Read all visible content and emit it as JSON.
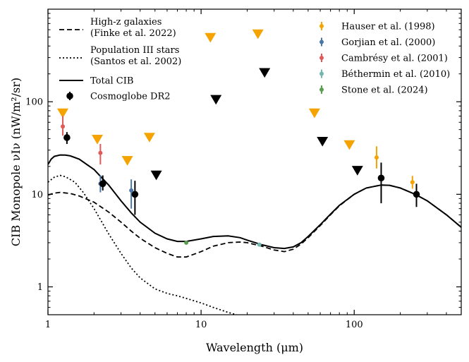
{
  "chart_data": {
    "type": "line",
    "xlabel": "Wavelength (μm)",
    "ylabel": "CIB Monopole νIν (nW/m²/sr)",
    "xscale": "log",
    "yscale": "log",
    "xlim": [
      1,
      500
    ],
    "ylim": [
      0.5,
      1000
    ],
    "xticks": [
      {
        "v": 1,
        "label": "1"
      },
      {
        "v": 10,
        "label": "10"
      },
      {
        "v": 100,
        "label": "100"
      }
    ],
    "yticks": [
      {
        "v": 1,
        "label": "1"
      },
      {
        "v": 10,
        "label": "10"
      },
      {
        "v": 100,
        "label": "100"
      }
    ],
    "colors": {
      "hauser": "#f5a300",
      "gorjian": "#4a76a8",
      "cambresy": "#e05a5a",
      "bethermin": "#72b8ae",
      "stone": "#5a9e50",
      "cosmoglobe": "#000000"
    },
    "lines": [
      {
        "name": "High-z galaxies (Finke et al. 2022)",
        "style": "dashed",
        "x": [
          1,
          1.1,
          1.2,
          1.4,
          1.6,
          2,
          2.5,
          3,
          3.5,
          4,
          5,
          6,
          7,
          8,
          10,
          12,
          15,
          18,
          20,
          25,
          30,
          35,
          40,
          45,
          50,
          60,
          70,
          80,
          100,
          120,
          150,
          170,
          200,
          250,
          300,
          400,
          500
        ],
        "y": [
          9.8,
          10.3,
          10.5,
          10.2,
          9.6,
          8.2,
          6.4,
          5,
          4,
          3.35,
          2.65,
          2.3,
          2.1,
          2.1,
          2.4,
          2.75,
          3,
          3.05,
          3,
          2.75,
          2.5,
          2.4,
          2.55,
          2.9,
          3.4,
          4.6,
          6,
          7.5,
          10,
          11.7,
          12.6,
          12.5,
          11.7,
          10,
          8.5,
          6,
          4.4
        ]
      },
      {
        "name": "Population III stars (Santos et al. 2002)",
        "style": "dotted",
        "x": [
          1,
          1.1,
          1.2,
          1.3,
          1.5,
          1.7,
          2,
          2.5,
          3,
          3.5,
          4,
          5,
          6,
          7,
          8,
          10,
          12,
          15,
          17
        ],
        "y": [
          13.5,
          15.3,
          16,
          15.5,
          13.5,
          10.5,
          7,
          3.7,
          2.3,
          1.6,
          1.25,
          0.95,
          0.85,
          0.8,
          0.75,
          0.67,
          0.6,
          0.53,
          0.5
        ]
      },
      {
        "name": "Total CIB",
        "style": "solid",
        "x": [
          1,
          1.05,
          1.1,
          1.2,
          1.3,
          1.4,
          1.6,
          2,
          2.5,
          3,
          3.5,
          4,
          5,
          6,
          7,
          8,
          10,
          12,
          15,
          18,
          20,
          25,
          30,
          35,
          40,
          45,
          50,
          60,
          70,
          80,
          100,
          120,
          150,
          170,
          200,
          250,
          300,
          400,
          500
        ],
        "y": [
          21,
          24,
          25.7,
          26.6,
          26.5,
          26,
          24,
          18.5,
          12.5,
          8.5,
          6.3,
          5,
          3.8,
          3.3,
          3.1,
          3.1,
          3.3,
          3.5,
          3.55,
          3.4,
          3.2,
          2.85,
          2.65,
          2.6,
          2.7,
          3,
          3.5,
          4.7,
          6.1,
          7.6,
          10,
          11.7,
          12.6,
          12.5,
          11.7,
          10,
          8.5,
          6,
          4.4
        ]
      }
    ],
    "upper_limits": [
      {
        "x": 1.25,
        "y": 75,
        "color": "#f5a300"
      },
      {
        "x": 2.1,
        "y": 39,
        "color": "#f5a300"
      },
      {
        "x": 3.3,
        "y": 23,
        "color": "#f5a300"
      },
      {
        "x": 4.6,
        "y": 41,
        "color": "#f5a300"
      },
      {
        "x": 5.1,
        "y": 16,
        "color": "#000000"
      },
      {
        "x": 11.5,
        "y": 490,
        "color": "#f5a300"
      },
      {
        "x": 12.5,
        "y": 105,
        "color": "#000000"
      },
      {
        "x": 23.5,
        "y": 535,
        "color": "#f5a300"
      },
      {
        "x": 26,
        "y": 205,
        "color": "#000000"
      },
      {
        "x": 55,
        "y": 75,
        "color": "#f5a300"
      },
      {
        "x": 62,
        "y": 37,
        "color": "#000000"
      },
      {
        "x": 93,
        "y": 34,
        "color": "#f5a300"
      },
      {
        "x": 105,
        "y": 18,
        "color": "#000000"
      }
    ],
    "points": [
      {
        "series": "Hauser et al. (1998)",
        "x": 140,
        "y": 25,
        "err": [
          19,
          33
        ]
      },
      {
        "series": "Hauser et al. (1998)",
        "x": 240,
        "y": 13.5,
        "err": [
          11.5,
          15.8
        ]
      },
      {
        "series": "Gorjian et al. (2000)",
        "x": 2.2,
        "y": 13,
        "err": [
          10.5,
          16
        ]
      },
      {
        "series": "Gorjian et al. (2000)",
        "x": 3.5,
        "y": 11,
        "err": [
          7,
          14.5
        ]
      },
      {
        "series": "Cambrésy et al. (2001)",
        "x": 1.25,
        "y": 54,
        "err": [
          43,
          70
        ]
      },
      {
        "series": "Cambrésy et al. (2001)",
        "x": 2.2,
        "y": 28,
        "err": [
          21,
          35
        ]
      },
      {
        "series": "Béthermin et al. (2010)",
        "x": 24,
        "y": 2.86,
        "err": [
          2.77,
          2.95
        ]
      },
      {
        "series": "Stone et al. (2024)",
        "x": 8,
        "y": 3.0,
        "err": [
          2.85,
          3.15
        ]
      },
      {
        "series": "Cosmoglobe DR2",
        "x": 1.33,
        "y": 41,
        "err": [
          35,
          47
        ]
      },
      {
        "series": "Cosmoglobe DR2",
        "x": 2.28,
        "y": 13,
        "err": [
          11,
          16
        ]
      },
      {
        "series": "Cosmoglobe DR2",
        "x": 3.7,
        "y": 10,
        "err": [
          6,
          14
        ]
      },
      {
        "series": "Cosmoglobe DR2",
        "x": 150,
        "y": 15,
        "err": [
          8,
          22
        ]
      },
      {
        "series": "Cosmoglobe DR2",
        "x": 255,
        "y": 10,
        "err": [
          7.3,
          13
        ]
      }
    ],
    "legend_left": [
      {
        "style": "dashed",
        "label1": "High-z galaxies",
        "label2": "(Finke et al. 2022)"
      },
      {
        "style": "dotted",
        "label1": "Population III stars",
        "label2": "(Santos et al. 2002)"
      },
      {
        "style": "solid",
        "label1": "Total CIB",
        "label2": ""
      },
      {
        "style": "point",
        "label1": "Cosmoglobe DR2",
        "label2": ""
      }
    ],
    "legend_right": [
      {
        "series": "Hauser et al. (1998)",
        "color": "#f5a300"
      },
      {
        "series": "Gorjian et al. (2000)",
        "color": "#4a76a8"
      },
      {
        "series": "Cambrésy et al. (2001)",
        "color": "#e05a5a"
      },
      {
        "series": "Béthermin et al. (2010)",
        "color": "#72b8ae"
      },
      {
        "series": "Stone et al. (2024)",
        "color": "#5a9e50"
      }
    ]
  }
}
